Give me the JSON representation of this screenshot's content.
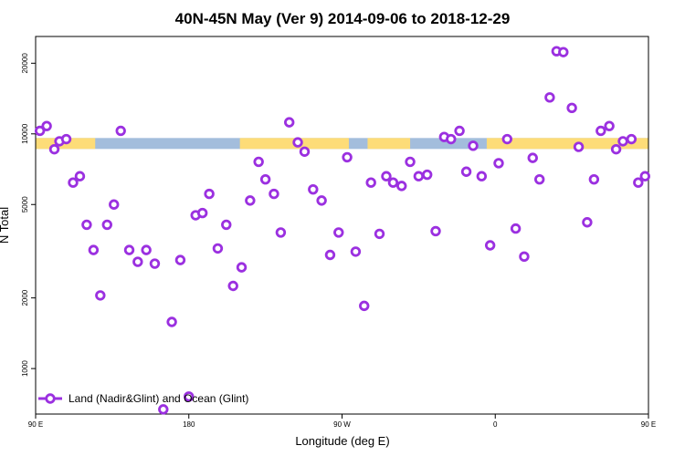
{
  "chart_data": {
    "type": "scatter",
    "title": "40N-45N May (Ver 9)   2014-09-06 to 2018-12-29",
    "xlabel": "Longitude (deg E)",
    "ylabel": "N Total",
    "y_scale": "log",
    "xlim": [
      90,
      450
    ],
    "ylim": [
      640,
      26000
    ],
    "x_ticks": [
      {
        "value": 90,
        "label": "90 E"
      },
      {
        "value": 180,
        "label": "180"
      },
      {
        "value": 270,
        "label": "90 W"
      },
      {
        "value": 360,
        "label": "0"
      },
      {
        "value": 450,
        "label": "90 E"
      },
      {
        "value": 540,
        "label": "180"
      }
    ],
    "y_ticks": [
      {
        "value": 1000,
        "label": "1000"
      },
      {
        "value": 2000,
        "label": "2000"
      },
      {
        "value": 5000,
        "label": "5000"
      },
      {
        "value": 10000,
        "label": "10000"
      },
      {
        "value": 20000,
        "label": "20000"
      }
    ],
    "surface_strip": {
      "y": 9100,
      "land_color": "#a3bddc",
      "ocean_color": "#fddc78",
      "ocean_segments": [
        [
          90,
          125
        ],
        [
          210,
          274
        ],
        [
          285,
          310
        ],
        [
          355,
          460
        ],
        [
          465,
          485
        ],
        [
          498,
          500
        ],
        [
          514,
          540
        ]
      ]
    },
    "series": [
      {
        "name": "Land (Nadir&Glint) and Ocean (Glint)",
        "color": "#9b30e0",
        "points": [
          [
            92.5,
            10300
          ],
          [
            96.5,
            10800
          ],
          [
            101,
            8600
          ],
          [
            104,
            9300
          ],
          [
            108,
            9500
          ],
          [
            112,
            6200
          ],
          [
            116,
            6600
          ],
          [
            120,
            4100
          ],
          [
            124,
            3200
          ],
          [
            128,
            2050
          ],
          [
            132,
            4100
          ],
          [
            136,
            5000
          ],
          [
            140,
            10300
          ],
          [
            145,
            3200
          ],
          [
            150,
            2850
          ],
          [
            155,
            3200
          ],
          [
            160,
            2800
          ],
          [
            165,
            670
          ],
          [
            170,
            1580
          ],
          [
            175,
            2900
          ],
          [
            180,
            760
          ],
          [
            184,
            4500
          ],
          [
            188,
            4600
          ],
          [
            192,
            5550
          ],
          [
            197,
            3250
          ],
          [
            202,
            4100
          ],
          [
            206,
            2250
          ],
          [
            211,
            2700
          ],
          [
            216,
            5200
          ],
          [
            221,
            7600
          ],
          [
            225,
            6400
          ],
          [
            230,
            5550
          ],
          [
            234,
            3800
          ],
          [
            239,
            11200
          ],
          [
            244,
            9200
          ],
          [
            248,
            8400
          ],
          [
            253,
            5800
          ],
          [
            258,
            5200
          ],
          [
            263,
            3050
          ],
          [
            268,
            3800
          ],
          [
            273,
            7950
          ],
          [
            278,
            3150
          ],
          [
            283,
            1850
          ],
          [
            287,
            6200
          ],
          [
            292,
            3750
          ],
          [
            296,
            6600
          ],
          [
            300,
            6200
          ],
          [
            305,
            6000
          ],
          [
            310,
            7600
          ],
          [
            315,
            6600
          ],
          [
            320,
            6700
          ],
          [
            325,
            3850
          ],
          [
            330,
            9700
          ],
          [
            334,
            9500
          ],
          [
            339,
            10300
          ],
          [
            343,
            6900
          ],
          [
            347,
            8900
          ],
          [
            352,
            6600
          ],
          [
            357,
            3350
          ],
          [
            362,
            7500
          ],
          [
            367,
            9500
          ],
          [
            372,
            3950
          ],
          [
            377,
            3000
          ],
          [
            382,
            7900
          ],
          [
            386,
            6400
          ],
          [
            392,
            14300
          ],
          [
            396,
            22500
          ],
          [
            400,
            22300
          ],
          [
            405,
            12900
          ],
          [
            409,
            8800
          ],
          [
            414,
            4200
          ],
          [
            418,
            6400
          ],
          [
            422,
            10300
          ],
          [
            427,
            10800
          ],
          [
            431,
            8600
          ],
          [
            435,
            9300
          ],
          [
            440,
            9500
          ],
          [
            444,
            6200
          ],
          [
            448,
            6600
          ]
        ]
      }
    ],
    "legend": {
      "placement": "bottom-left"
    }
  }
}
